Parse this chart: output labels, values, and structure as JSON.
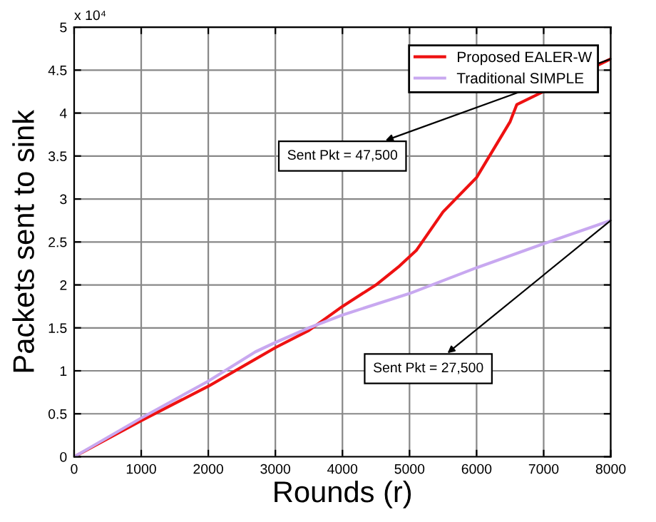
{
  "chart_data": {
    "type": "line",
    "xlabel": "Rounds (r)",
    "ylabel": "Packets sent to sink",
    "xlim": [
      0,
      8000
    ],
    "xticks": [
      0,
      1000,
      2000,
      3000,
      4000,
      5000,
      6000,
      7000,
      8000
    ],
    "ylim": [
      0,
      5
    ],
    "yticks": [
      0,
      0.5,
      1,
      1.5,
      2,
      2.5,
      3,
      3.5,
      4,
      4.5,
      5
    ],
    "grid": true,
    "legend": "top right",
    "line_style": "solid",
    "series": [
      {
        "name": "Proposed EALER-W",
        "color": "#ee1111",
        "x": [
          0,
          1000,
          2000,
          3000,
          3500,
          4000,
          4500,
          4850,
          5100,
          5500,
          6000,
          6500,
          6600,
          8000
        ],
        "values": [
          0,
          0.42,
          0.82,
          1.27,
          1.47,
          1.75,
          2.0,
          2.22,
          2.4,
          2.85,
          3.25,
          3.9,
          4.1,
          4.63
        ]
      },
      {
        "name": "Traditional SIMPLE",
        "color": "#c8a8f0",
        "x": [
          0,
          1000,
          2000,
          2700,
          3000,
          3500,
          4000,
          5000,
          6000,
          7000,
          8000
        ],
        "values": [
          0,
          0.45,
          0.88,
          1.22,
          1.33,
          1.5,
          1.65,
          1.9,
          2.2,
          2.48,
          2.75
        ]
      }
    ],
    "annotations": [
      "x 10⁴",
      {
        "text": "Sent Pkt = 47,500",
        "x": 8000,
        "y": 4.63
      },
      {
        "text": "Sent Pkt = 27,500",
        "x": 8000,
        "y": 2.75
      }
    ]
  }
}
